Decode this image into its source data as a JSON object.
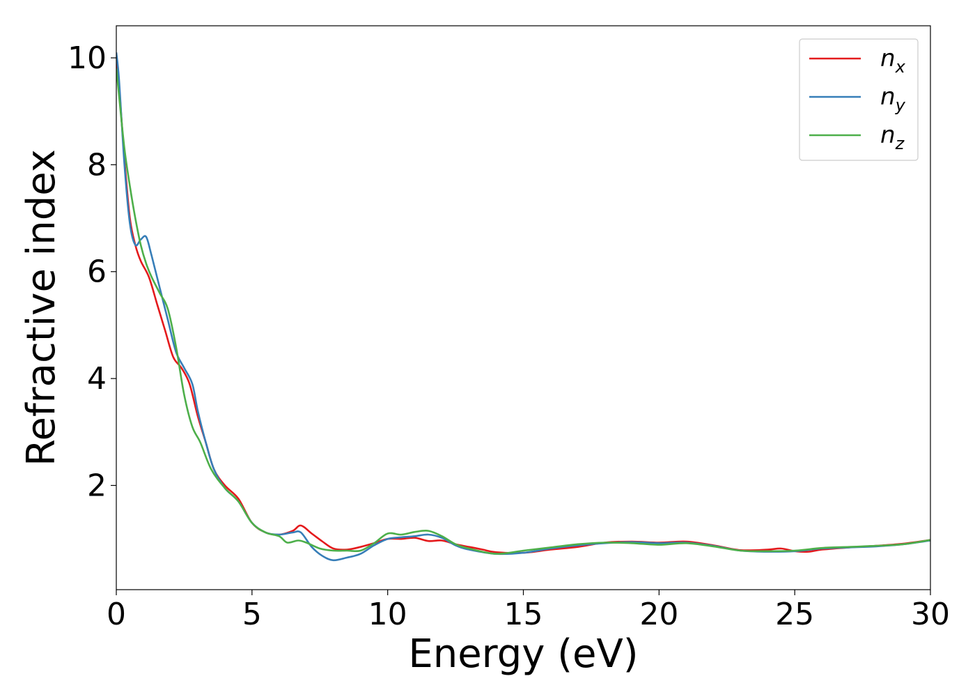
{
  "chart_data": {
    "type": "line",
    "title": "",
    "xlabel": "Energy (eV)",
    "ylabel": "Refractive index",
    "xlim": [
      0,
      30
    ],
    "ylim": [
      0.05,
      10.6
    ],
    "xticks": [
      0,
      5,
      10,
      15,
      20,
      25,
      30
    ],
    "yticks": [
      2,
      4,
      6,
      8,
      10
    ],
    "grid": false,
    "legend_position": "top-right",
    "series": [
      {
        "name": "n",
        "subscript": "x",
        "color": "#e41a1c",
        "x": [
          0,
          0.1,
          0.3,
          0.5,
          0.7,
          0.9,
          1.2,
          1.5,
          1.8,
          2.1,
          2.4,
          2.7,
          3.0,
          3.3,
          3.6,
          4.0,
          4.5,
          5.0,
          5.5,
          6.0,
          6.5,
          6.8,
          7.2,
          7.6,
          8.0,
          8.5,
          9.0,
          9.5,
          10.0,
          10.5,
          11.0,
          11.5,
          12.0,
          12.5,
          13.0,
          13.5,
          14.0,
          15.0,
          16.0,
          17.0,
          18.0,
          19.0,
          20.0,
          21.0,
          22.0,
          23.0,
          24.0,
          24.5,
          25.0,
          25.5,
          26.0,
          27.0,
          28.0,
          29.0,
          30.0
        ],
        "y": [
          9.9,
          9.5,
          8.1,
          7.0,
          6.5,
          6.2,
          5.9,
          5.4,
          4.9,
          4.4,
          4.2,
          3.9,
          3.3,
          2.8,
          2.3,
          2.0,
          1.75,
          1.3,
          1.12,
          1.08,
          1.15,
          1.25,
          1.1,
          0.95,
          0.82,
          0.8,
          0.85,
          0.92,
          1.0,
          1.0,
          1.02,
          0.96,
          0.97,
          0.9,
          0.85,
          0.8,
          0.75,
          0.74,
          0.8,
          0.85,
          0.93,
          0.95,
          0.93,
          0.95,
          0.88,
          0.79,
          0.8,
          0.82,
          0.77,
          0.76,
          0.8,
          0.84,
          0.87,
          0.91,
          0.98
        ]
      },
      {
        "name": "n",
        "subscript": "y",
        "color": "#377eb8",
        "x": [
          0,
          0.1,
          0.3,
          0.5,
          0.7,
          0.9,
          1.1,
          1.3,
          1.6,
          1.9,
          2.2,
          2.5,
          2.8,
          3.0,
          3.3,
          3.6,
          4.0,
          4.5,
          5.0,
          5.5,
          6.0,
          6.5,
          6.8,
          7.2,
          7.6,
          8.0,
          8.5,
          9.0,
          9.5,
          10.0,
          10.5,
          11.0,
          11.5,
          12.0,
          12.5,
          13.0,
          14.0,
          15.0,
          16.0,
          17.0,
          18.0,
          19.0,
          20.0,
          21.0,
          22.0,
          23.0,
          24.0,
          25.0,
          26.0,
          27.0,
          28.0,
          29.0,
          30.0
        ],
        "y": [
          10.1,
          9.6,
          8.0,
          6.9,
          6.5,
          6.6,
          6.65,
          6.3,
          5.7,
          5.1,
          4.5,
          4.2,
          3.9,
          3.4,
          2.8,
          2.3,
          1.95,
          1.7,
          1.3,
          1.12,
          1.08,
          1.12,
          1.12,
          0.85,
          0.68,
          0.6,
          0.65,
          0.72,
          0.88,
          1.0,
          1.03,
          1.05,
          1.08,
          1.02,
          0.88,
          0.8,
          0.72,
          0.74,
          0.82,
          0.88,
          0.92,
          0.94,
          0.92,
          0.93,
          0.87,
          0.78,
          0.76,
          0.77,
          0.82,
          0.84,
          0.86,
          0.9,
          0.97
        ]
      },
      {
        "name": "n",
        "subscript": "z",
        "color": "#4daf4a",
        "x": [
          0,
          0.1,
          0.3,
          0.5,
          0.7,
          0.9,
          1.1,
          1.3,
          1.6,
          1.9,
          2.2,
          2.5,
          2.8,
          3.1,
          3.5,
          4.0,
          4.5,
          5.0,
          5.5,
          6.0,
          6.3,
          6.7,
          7.0,
          7.5,
          8.0,
          8.5,
          9.0,
          9.5,
          10.0,
          10.5,
          11.0,
          11.5,
          12.0,
          12.5,
          13.0,
          14.0,
          15.0,
          16.0,
          17.0,
          18.0,
          19.0,
          20.0,
          21.0,
          22.0,
          23.0,
          24.0,
          25.0,
          26.0,
          27.0,
          28.0,
          29.0,
          30.0
        ],
        "y": [
          9.8,
          9.3,
          8.3,
          7.6,
          7.0,
          6.5,
          6.15,
          5.9,
          5.6,
          5.3,
          4.6,
          3.7,
          3.1,
          2.8,
          2.3,
          1.95,
          1.7,
          1.3,
          1.12,
          1.05,
          0.93,
          0.97,
          0.93,
          0.82,
          0.78,
          0.78,
          0.78,
          0.92,
          1.1,
          1.08,
          1.13,
          1.15,
          1.05,
          0.9,
          0.82,
          0.72,
          0.78,
          0.84,
          0.9,
          0.93,
          0.92,
          0.89,
          0.92,
          0.86,
          0.78,
          0.77,
          0.78,
          0.83,
          0.85,
          0.87,
          0.9,
          0.98
        ]
      }
    ]
  }
}
